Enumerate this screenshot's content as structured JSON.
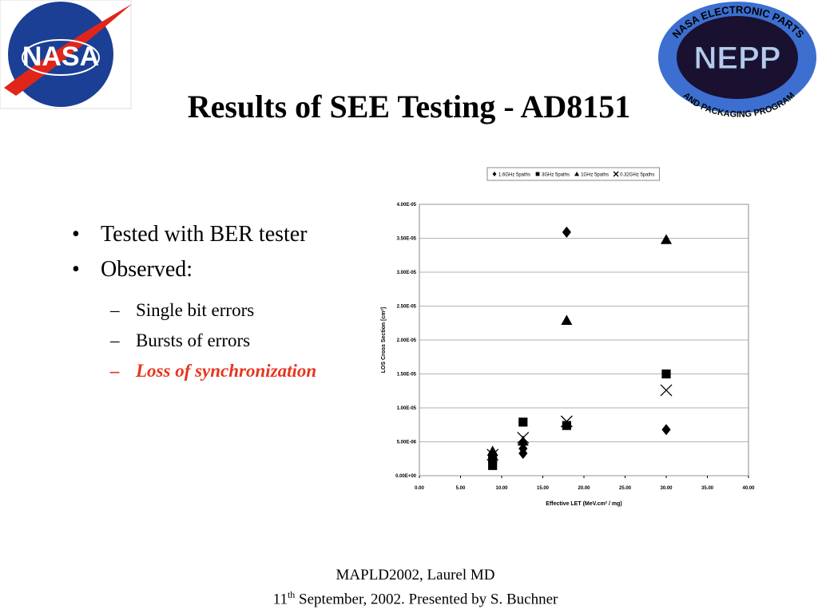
{
  "logos": {
    "nasa": "NASA",
    "nepp": "NEPP",
    "nepp_top": "NASA ELECTRONIC PARTS",
    "nepp_bottom": "AND PACKAGING PROGRAM"
  },
  "title": "Results of SEE Testing - AD8151",
  "bullets": [
    "Tested with BER tester",
    "Observed:"
  ],
  "sub_bullets": [
    "Single bit errors",
    "Bursts of errors",
    "Loss of synchronization"
  ],
  "footer": {
    "line1": "MAPLD2002, Laurel MD",
    "day": "11",
    "day_suffix": "th",
    "line2_rest": " September, 2002. Presented by S. Buchner"
  },
  "chart_data": {
    "type": "scatter",
    "x_label": "Effective LET (MeV.cm² / mg)",
    "y_label": "LOS Cross Section [cm²]",
    "xlim": [
      0,
      40
    ],
    "xticks": [
      {
        "value": 0,
        "label": "0.00"
      },
      {
        "value": 5,
        "label": "5.00"
      },
      {
        "value": 10,
        "label": "10.00"
      },
      {
        "value": 15,
        "label": "15.00"
      },
      {
        "value": 20,
        "label": "20.00"
      },
      {
        "value": 25,
        "label": "25.00"
      },
      {
        "value": 30,
        "label": "30.00"
      },
      {
        "value": 35,
        "label": "35.00"
      },
      {
        "value": 40,
        "label": "40.00"
      }
    ],
    "ylim": [
      0,
      4e-05
    ],
    "yticks": [
      {
        "value": 0,
        "label": "0.00E+00"
      },
      {
        "value": 5e-06,
        "label": "5.00E-06"
      },
      {
        "value": 1e-05,
        "label": "1.00E-05"
      },
      {
        "value": 1.5e-05,
        "label": "1.50E-05"
      },
      {
        "value": 2e-05,
        "label": "2.00E-05"
      },
      {
        "value": 2.5e-05,
        "label": "2.50E-05"
      },
      {
        "value": 3e-05,
        "label": "3.00E-05"
      },
      {
        "value": 3.5e-05,
        "label": "3.50E-05"
      },
      {
        "value": 4e-05,
        "label": "4.00E-05"
      }
    ],
    "grid": true,
    "legend": "top",
    "series": [
      {
        "name": "1.6GHz 5paths",
        "marker": "diamond",
        "color": "#000000",
        "x": [
          8.9,
          12.6,
          12.6,
          17.9,
          30
        ],
        "values": [
          2.1e-06,
          3.3e-06,
          4e-06,
          3.59e-05,
          6.8e-06
        ]
      },
      {
        "name": "3GHz 5paths",
        "marker": "square",
        "color": "#000000",
        "x": [
          8.9,
          8.9,
          12.6,
          17.9,
          30
        ],
        "values": [
          1.5e-06,
          2.5e-06,
          7.9e-06,
          7.4e-06,
          1.5e-05
        ]
      },
      {
        "name": "1GHz 5paths",
        "marker": "triangle",
        "color": "#000000",
        "x": [
          8.9,
          12.6,
          17.9,
          30
        ],
        "values": [
          3.6e-06,
          5.1e-06,
          2.29e-05,
          3.48e-05
        ]
      },
      {
        "name": "0.32GHz 5paths",
        "marker": "x",
        "color": "#000000",
        "x": [
          8.9,
          12.6,
          17.9,
          30
        ],
        "values": [
          3.1e-06,
          5.6e-06,
          8e-06,
          1.26e-05
        ]
      }
    ]
  }
}
